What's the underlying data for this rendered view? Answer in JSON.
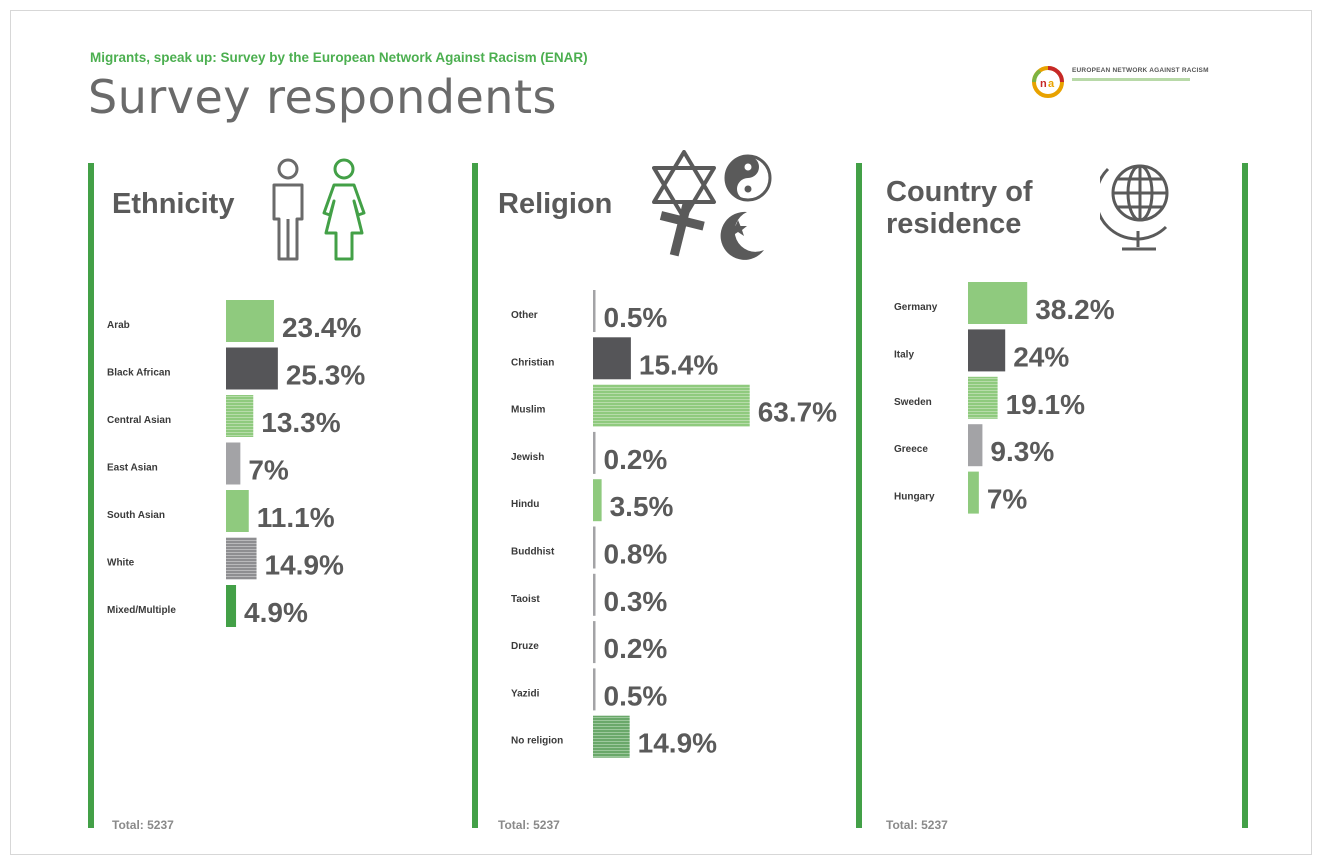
{
  "header": {
    "subtitle": "Migrants, speak up: Survey by the European Network Against Racism (ENAR)",
    "title": "Survey respondents",
    "logo_text": "EUROPEAN NETWORK AGAINST RACISM"
  },
  "colors": {
    "green": "#43a047",
    "light_green": "#8fca7e",
    "dark_gray": "#555558",
    "mid_gray": "#a3a3a6",
    "text_gray": "#5a5a5a"
  },
  "chart_data": [
    {
      "type": "bar",
      "title": "Ethnicity",
      "categories": [
        "Arab",
        "Black African",
        "Central Asian",
        "East Asian",
        "South Asian",
        "White",
        "Mixed/Multiple"
      ],
      "values": [
        23.4,
        25.3,
        13.3,
        7,
        11.1,
        14.9,
        4.9
      ],
      "labels": [
        "23.4%",
        "25.3%",
        "13.3%",
        "7%",
        "11.1%",
        "14.9%",
        "4.9%"
      ],
      "styles": [
        "light",
        "dark",
        "light-lines",
        "gray",
        "light",
        "gray-lines",
        "green"
      ],
      "total": "Total: 5237"
    },
    {
      "type": "bar",
      "title": "Religion",
      "categories": [
        "Other",
        "Christian",
        "Muslim",
        "Jewish",
        "Hindu",
        "Buddhist",
        "Taoist",
        "Druze",
        "Yazidi",
        "No religion"
      ],
      "values": [
        0.5,
        15.4,
        63.7,
        0.2,
        3.5,
        0.8,
        0.3,
        0.2,
        0.5,
        14.9
      ],
      "labels": [
        "0.5%",
        "15.4%",
        "63.7%",
        "0.2%",
        "3.5%",
        "0.8%",
        "0.3%",
        "0.2%",
        "0.5%",
        "14.9%"
      ],
      "styles": [
        "gray",
        "dark",
        "light-lines",
        "gray",
        "light",
        "gray",
        "gray",
        "gray",
        "gray",
        "green-lines"
      ],
      "total": "Total: 5237"
    },
    {
      "type": "bar",
      "title": "Country of residence",
      "categories": [
        "Germany",
        "Italy",
        "Sweden",
        "Greece",
        "Hungary"
      ],
      "values": [
        38.2,
        24,
        19.1,
        9.3,
        7
      ],
      "labels": [
        "38.2%",
        "24%",
        "19.1%",
        "9.3%",
        "7%"
      ],
      "styles": [
        "light",
        "dark",
        "light-lines",
        "gray",
        "light"
      ],
      "total": "Total: 5237"
    }
  ]
}
